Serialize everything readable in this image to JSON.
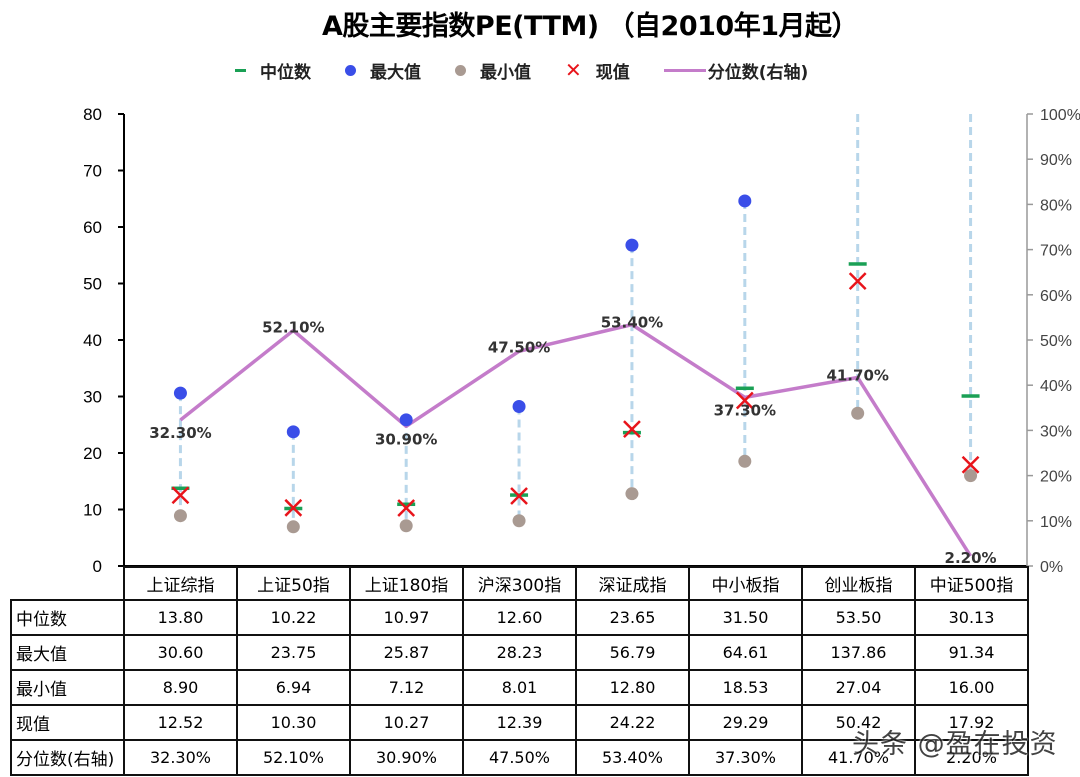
{
  "title": "A股主要指数PE(TTM) （自2010年1月起）",
  "legend": [
    {
      "label": "中位数",
      "symbol": "dash",
      "color": "#1aa055"
    },
    {
      "label": "最大值",
      "symbol": "circle",
      "color": "#3a4ee8"
    },
    {
      "label": "最小值",
      "symbol": "circle",
      "color": "#a99a92"
    },
    {
      "label": "现值",
      "symbol": "x",
      "color": "#e8141b"
    },
    {
      "label": "分位数(右轴)",
      "symbol": "line",
      "color": "#c47cca"
    }
  ],
  "colors": {
    "median": "#1aa055",
    "max": "#3a4ee8",
    "min": "#a99a92",
    "current": "#e8141b",
    "percentile_line": "#c47cca",
    "range_line": "#b8d6ea",
    "right_axis": "#999999"
  },
  "axes": {
    "left_ticks": [
      "0",
      "10",
      "20",
      "30",
      "40",
      "50",
      "60",
      "70",
      "80"
    ],
    "right_ticks": [
      "0%",
      "10%",
      "20%",
      "30%",
      "40%",
      "50%",
      "60%",
      "70%",
      "80%",
      "90%",
      "100%"
    ]
  },
  "table": {
    "columns": [
      "上证综指",
      "上证50指",
      "上证180指",
      "沪深300指",
      "深证成指",
      "中小板指",
      "创业板指",
      "中证500指"
    ],
    "rows": [
      {
        "label": "中位数",
        "values": [
          "13.80",
          "10.22",
          "10.97",
          "12.60",
          "23.65",
          "31.50",
          "53.50",
          "30.13"
        ]
      },
      {
        "label": "最大值",
        "values": [
          "30.60",
          "23.75",
          "25.87",
          "28.23",
          "56.79",
          "64.61",
          "137.86",
          "91.34"
        ]
      },
      {
        "label": "最小值",
        "values": [
          "8.90",
          "6.94",
          "7.12",
          "8.01",
          "12.80",
          "18.53",
          "27.04",
          "16.00"
        ]
      },
      {
        "label": "现值",
        "values": [
          "12.52",
          "10.30",
          "10.27",
          "12.39",
          "24.22",
          "29.29",
          "50.42",
          "17.92"
        ]
      },
      {
        "label": "分位数(右轴)",
        "values": [
          "32.30%",
          "52.10%",
          "30.90%",
          "47.50%",
          "53.40%",
          "37.30%",
          "41.70%",
          "2.20%"
        ]
      }
    ]
  },
  "watermark": "头条 @盈在投资",
  "chart_data": {
    "type": "scatter",
    "title": "A股主要指数PE(TTM) （自2010年1月起）",
    "categories": [
      "上证综指",
      "上证50指",
      "上证180指",
      "沪深300指",
      "深证成指",
      "中小板指",
      "创业板指",
      "中证500指"
    ],
    "series": [
      {
        "name": "中位数",
        "type": "scatter",
        "marker": "dash",
        "axis": "left",
        "values": [
          13.8,
          10.22,
          10.97,
          12.6,
          23.65,
          31.5,
          53.5,
          30.13
        ]
      },
      {
        "name": "最大值",
        "type": "scatter",
        "marker": "circle",
        "axis": "left",
        "values": [
          30.6,
          23.75,
          25.87,
          28.23,
          56.79,
          64.61,
          137.86,
          91.34
        ]
      },
      {
        "name": "最小值",
        "type": "scatter",
        "marker": "circle",
        "axis": "left",
        "values": [
          8.9,
          6.94,
          7.12,
          8.01,
          12.8,
          18.53,
          27.04,
          16.0
        ]
      },
      {
        "name": "现值",
        "type": "scatter",
        "marker": "x",
        "axis": "left",
        "values": [
          12.52,
          10.3,
          10.27,
          12.39,
          24.22,
          29.29,
          50.42,
          17.92
        ]
      },
      {
        "name": "分位数(右轴)",
        "type": "line",
        "axis": "right",
        "values": [
          32.3,
          52.1,
          30.9,
          47.5,
          53.4,
          37.3,
          41.7,
          2.2
        ],
        "data_labels": [
          "32.30%",
          "52.10%",
          "30.90%",
          "47.50%",
          "53.40%",
          "37.30%",
          "41.70%",
          "2.20%"
        ]
      }
    ],
    "xlabel": "",
    "ylabel": "",
    "ylim": [
      0,
      80
    ],
    "y2lim": [
      0,
      100
    ],
    "y2_format": "percent",
    "grid": false,
    "legend_position": "top",
    "notes": "Vertical dashed light-blue lines connect min to max for each index (clipped at top of plot); data table below the chart."
  }
}
